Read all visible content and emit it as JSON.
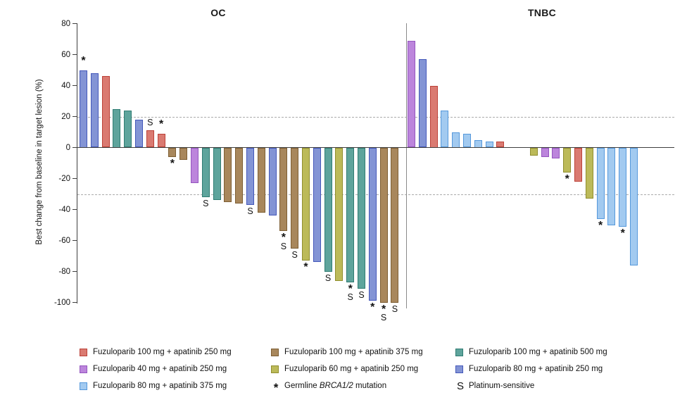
{
  "figure": {
    "y_axis_label": "Best change from baseline in target lesion (%)"
  },
  "colors": {
    "red": {
      "fill": "#DA7A71",
      "border": "#BC4138"
    },
    "brown": {
      "fill": "#A8875C",
      "border": "#7D5E33"
    },
    "teal": {
      "fill": "#5EA49C",
      "border": "#2F7C72"
    },
    "purple": {
      "fill": "#BC85DC",
      "border": "#9455BF"
    },
    "olive": {
      "fill": "#BCBA59",
      "border": "#908E2E"
    },
    "blue": {
      "fill": "#8394D5",
      "border": "#4458BA"
    },
    "lightblue": {
      "fill": "#A2CAF0",
      "border": "#5598DB"
    }
  },
  "legend": {
    "items": [
      {
        "kind": "swatch",
        "color": "red",
        "label": "Fuzuloparib 100 mg + apatinib 250 mg"
      },
      {
        "kind": "swatch",
        "color": "brown",
        "label": "Fuzuloparib 100 mg + apatinib 375 mg"
      },
      {
        "kind": "swatch",
        "color": "teal",
        "label": "Fuzuloparib 100 mg + apatinib 500 mg"
      },
      {
        "kind": "swatch",
        "color": "purple",
        "label": "Fuzuloparib 40 mg + apatinib 250 mg"
      },
      {
        "kind": "swatch",
        "color": "olive",
        "label": "Fuzuloparib 60 mg + apatinib 250 mg"
      },
      {
        "kind": "swatch",
        "color": "blue",
        "label": "Fuzuloparib 80 mg + apatinib 250 mg"
      },
      {
        "kind": "swatch",
        "color": "lightblue",
        "label": "Fuzuloparib 80 mg + apatinib 375 mg"
      },
      {
        "kind": "star",
        "glyph": "*",
        "label_pre": "Germline ",
        "label_italic": "BRCA1/2",
        "label_post": " mutation"
      },
      {
        "kind": "s",
        "glyph": "S",
        "label": "Platinum-sensitive"
      }
    ]
  },
  "chart_data": {
    "type": "bar",
    "subtype": "waterfall",
    "ylabel": "Best change from baseline in target lesion (%)",
    "ylim": [
      -100,
      80
    ],
    "yticks": [
      80,
      60,
      40,
      20,
      0,
      -20,
      -40,
      -60,
      -80,
      -100
    ],
    "reference_lines": [
      20,
      -30
    ],
    "marker_meanings": {
      "*": "Germline BRCA1/2 mutation",
      "S": "Platinum-sensitive"
    },
    "group_colors": {
      "red": "Fuzuloparib 100 mg + apatinib 250 mg",
      "brown": "Fuzuloparib 100 mg + apatinib 375 mg",
      "teal": "Fuzuloparib 100 mg + apatinib 500 mg",
      "purple": "Fuzuloparib 40 mg + apatinib 250 mg",
      "olive": "Fuzuloparib 60 mg + apatinib 250 mg",
      "blue": "Fuzuloparib 80 mg + apatinib 250 mg",
      "lightblue": "Fuzuloparib 80 mg + apatinib 375 mg"
    },
    "panels": [
      {
        "label": "OC",
        "bars": [
          {
            "v": 50,
            "c": "blue",
            "m": "*"
          },
          {
            "v": 48,
            "c": "blue",
            "m": ""
          },
          {
            "v": 46,
            "c": "red",
            "m": ""
          },
          {
            "v": 25,
            "c": "teal",
            "m": ""
          },
          {
            "v": 24,
            "c": "teal",
            "m": ""
          },
          {
            "v": 18,
            "c": "blue",
            "m": ""
          },
          {
            "v": 11,
            "c": "red",
            "m": "S"
          },
          {
            "v": 9,
            "c": "red",
            "m": "*"
          },
          {
            "v": -6,
            "c": "brown",
            "m": "*"
          },
          {
            "v": -8,
            "c": "brown",
            "m": ""
          },
          {
            "v": -23,
            "c": "purple",
            "m": ""
          },
          {
            "v": -32,
            "c": "teal",
            "m": "S"
          },
          {
            "v": -34,
            "c": "teal",
            "m": ""
          },
          {
            "v": -35,
            "c": "brown",
            "m": ""
          },
          {
            "v": -36,
            "c": "brown",
            "m": ""
          },
          {
            "v": -37,
            "c": "blue",
            "m": "S"
          },
          {
            "v": -42,
            "c": "brown",
            "m": ""
          },
          {
            "v": -44,
            "c": "blue",
            "m": ""
          },
          {
            "v": -54,
            "c": "brown",
            "m": "*S"
          },
          {
            "v": -65,
            "c": "brown",
            "m": "S"
          },
          {
            "v": -73,
            "c": "olive",
            "m": "*"
          },
          {
            "v": -74,
            "c": "blue",
            "m": ""
          },
          {
            "v": -80,
            "c": "teal",
            "m": "S"
          },
          {
            "v": -86,
            "c": "olive",
            "m": ""
          },
          {
            "v": -87,
            "c": "teal",
            "m": "*S"
          },
          {
            "v": -91,
            "c": "teal",
            "m": "S"
          },
          {
            "v": -99,
            "c": "blue",
            "m": "*"
          },
          {
            "v": -100,
            "c": "brown",
            "m": "*S"
          },
          {
            "v": -100,
            "c": "brown",
            "m": "S"
          }
        ]
      },
      {
        "label": "TNBC",
        "bars": [
          {
            "v": 69,
            "c": "purple",
            "m": ""
          },
          {
            "v": 57,
            "c": "blue",
            "m": ""
          },
          {
            "v": 40,
            "c": "red",
            "m": ""
          },
          {
            "v": 24,
            "c": "lightblue",
            "m": ""
          },
          {
            "v": 10,
            "c": "lightblue",
            "m": ""
          },
          {
            "v": 9,
            "c": "lightblue",
            "m": ""
          },
          {
            "v": 5,
            "c": "lightblue",
            "m": ""
          },
          {
            "v": 4,
            "c": "lightblue",
            "m": ""
          },
          {
            "v": 4,
            "c": "red",
            "m": ""
          },
          {
            "v": 0,
            "c": null,
            "m": ""
          },
          {
            "v": 0,
            "c": null,
            "m": ""
          },
          {
            "v": -5,
            "c": "olive",
            "m": ""
          },
          {
            "v": -6,
            "c": "purple",
            "m": ""
          },
          {
            "v": -7,
            "c": "purple",
            "m": ""
          },
          {
            "v": -16,
            "c": "olive",
            "m": "*"
          },
          {
            "v": -22,
            "c": "red",
            "m": ""
          },
          {
            "v": -33,
            "c": "olive",
            "m": ""
          },
          {
            "v": -46,
            "c": "lightblue",
            "m": "*"
          },
          {
            "v": -50,
            "c": "lightblue",
            "m": ""
          },
          {
            "v": -51,
            "c": "lightblue",
            "m": "*"
          },
          {
            "v": -76,
            "c": "lightblue",
            "m": ""
          }
        ]
      }
    ]
  }
}
